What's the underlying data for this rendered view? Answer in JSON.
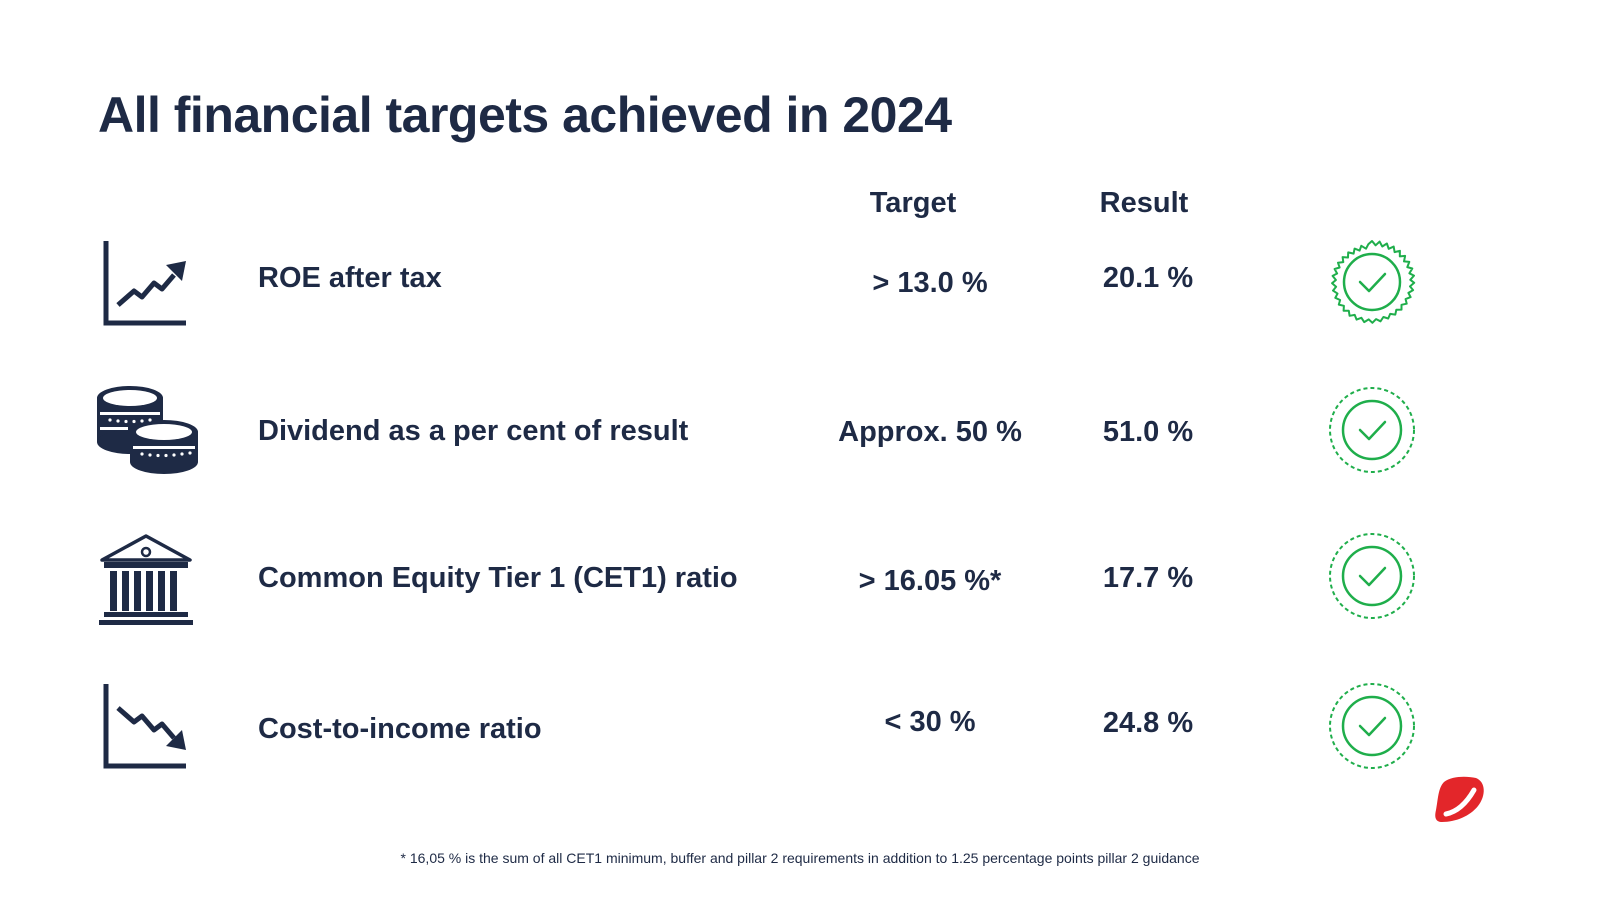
{
  "title": "All financial targets achieved in 2024",
  "columns": {
    "target": "Target",
    "result": "Result"
  },
  "rows": [
    {
      "label": "ROE after tax",
      "target": "> 13.0 %",
      "result": "20.1 %",
      "icon": "trend-up-chart-icon"
    },
    {
      "label": "Dividend as a per cent of result",
      "target": "Approx. 50 %",
      "result": "51.0 %",
      "icon": "coins-icon"
    },
    {
      "label": "Common Equity Tier 1 (CET1) ratio",
      "target": "> 16.05 %*",
      "result": "17.7 %",
      "icon": "bank-building-icon"
    },
    {
      "label": "Cost-to-income ratio",
      "target": "< 30 %",
      "result": "24.8 %",
      "icon": "trend-down-chart-icon"
    }
  ],
  "badge_icon": "check-badge-icon",
  "footnote": "* 16,05 % is the sum of all CET1 minimum, buffer and pillar 2 requirements in addition to 1.25 percentage points pillar 2 guidance",
  "colors": {
    "navy": "#1e2a45",
    "green": "#1fae4b",
    "brand_red": "#e3262a"
  }
}
